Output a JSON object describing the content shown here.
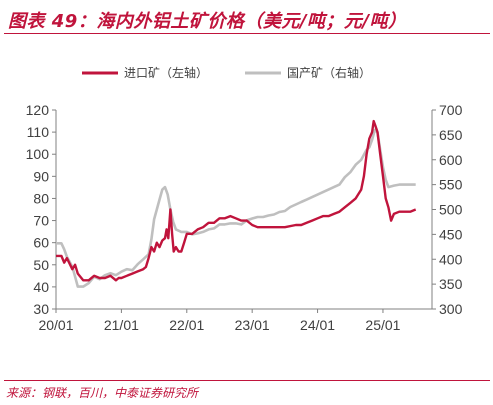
{
  "header": {
    "title": "图表 49：海内外铝土矿价格（美元/吨；元/吨）"
  },
  "footer": {
    "source": "来源：钢联，百川，中泰证券研究所"
  },
  "colors": {
    "accent": "#c0143c",
    "series_left": "#c0143c",
    "series_right": "#bfbfbf",
    "axis": "#808080"
  },
  "chart_data": {
    "type": "line",
    "title": "",
    "legend_placement": "top-center",
    "grid": false,
    "x_axis": {
      "ticks": [
        "20/01",
        "21/01",
        "22/01",
        "23/01",
        "24/01",
        "25/01"
      ],
      "range": [
        0,
        69
      ]
    },
    "y_left": {
      "range": [
        30,
        120
      ],
      "ticks": [
        30,
        40,
        50,
        60,
        70,
        80,
        90,
        100,
        110,
        120
      ]
    },
    "y_right": {
      "range": [
        300,
        700
      ],
      "ticks": [
        300,
        350,
        400,
        450,
        500,
        550,
        600,
        650,
        700
      ]
    },
    "series": [
      {
        "name": "进口矿（左轴）",
        "axis": "left",
        "color": "#c0143c",
        "points": [
          [
            0,
            54
          ],
          [
            1,
            54
          ],
          [
            1.5,
            51
          ],
          [
            2,
            53
          ],
          [
            3,
            48
          ],
          [
            3.5,
            50
          ],
          [
            4,
            46
          ],
          [
            5,
            43
          ],
          [
            6,
            43
          ],
          [
            7,
            45
          ],
          [
            8,
            44
          ],
          [
            9,
            44
          ],
          [
            10,
            45
          ],
          [
            11,
            43
          ],
          [
            11.5,
            44
          ],
          [
            12,
            44
          ],
          [
            13,
            45
          ],
          [
            14,
            46
          ],
          [
            15,
            47
          ],
          [
            16,
            48
          ],
          [
            16.5,
            49
          ],
          [
            17,
            53
          ],
          [
            17.5,
            58
          ],
          [
            18,
            56
          ],
          [
            18.5,
            60
          ],
          [
            19,
            58
          ],
          [
            19.5,
            61
          ],
          [
            20,
            62
          ],
          [
            20.3,
            66
          ],
          [
            20.6,
            62
          ],
          [
            21,
            75
          ],
          [
            21.3,
            64
          ],
          [
            21.6,
            56
          ],
          [
            22,
            58
          ],
          [
            22.5,
            56
          ],
          [
            23,
            56
          ],
          [
            23.5,
            60
          ],
          [
            24,
            64
          ],
          [
            25,
            64
          ],
          [
            26,
            66
          ],
          [
            27,
            67
          ],
          [
            28,
            69
          ],
          [
            29,
            69
          ],
          [
            30,
            71
          ],
          [
            31,
            71
          ],
          [
            32,
            72
          ],
          [
            33,
            71
          ],
          [
            34,
            70
          ],
          [
            35,
            70
          ],
          [
            36,
            68
          ],
          [
            37,
            67
          ],
          [
            38,
            67
          ],
          [
            40,
            67
          ],
          [
            42,
            67
          ],
          [
            44,
            68
          ],
          [
            45,
            68
          ],
          [
            46,
            69
          ],
          [
            47,
            70
          ],
          [
            48,
            71
          ],
          [
            49,
            72
          ],
          [
            50,
            72
          ],
          [
            51,
            73
          ],
          [
            52,
            74
          ],
          [
            53,
            76
          ],
          [
            54,
            78
          ],
          [
            55,
            80
          ],
          [
            56,
            84
          ],
          [
            56.5,
            90
          ],
          [
            57,
            100
          ],
          [
            57.5,
            107
          ],
          [
            58,
            110
          ],
          [
            58.3,
            115
          ],
          [
            58.6,
            113
          ],
          [
            59,
            110
          ],
          [
            59.5,
            100
          ],
          [
            60,
            90
          ],
          [
            60.5,
            80
          ],
          [
            61,
            76
          ],
          [
            61.5,
            70
          ],
          [
            62,
            73
          ],
          [
            63,
            74
          ],
          [
            64,
            74
          ],
          [
            65,
            74
          ],
          [
            66,
            75
          ]
        ]
      },
      {
        "name": "国产矿（右轴）",
        "axis": "right",
        "color": "#bfbfbf",
        "points": [
          [
            0,
            432
          ],
          [
            1,
            432
          ],
          [
            1.5,
            420
          ],
          [
            2,
            405
          ],
          [
            3,
            385
          ],
          [
            3.5,
            365
          ],
          [
            4,
            345
          ],
          [
            5,
            345
          ],
          [
            6,
            352
          ],
          [
            7,
            365
          ],
          [
            8,
            360
          ],
          [
            9,
            368
          ],
          [
            10,
            372
          ],
          [
            11,
            368
          ],
          [
            12,
            375
          ],
          [
            13,
            380
          ],
          [
            14,
            378
          ],
          [
            15,
            390
          ],
          [
            16,
            400
          ],
          [
            17,
            410
          ],
          [
            17.5,
            440
          ],
          [
            18,
            480
          ],
          [
            18.5,
            500
          ],
          [
            19,
            520
          ],
          [
            19.5,
            540
          ],
          [
            20,
            545
          ],
          [
            20.5,
            530
          ],
          [
            21,
            500
          ],
          [
            21.5,
            475
          ],
          [
            22,
            460
          ],
          [
            23,
            455
          ],
          [
            24,
            455
          ],
          [
            25,
            450
          ],
          [
            26,
            452
          ],
          [
            27,
            455
          ],
          [
            28,
            460
          ],
          [
            29,
            462
          ],
          [
            30,
            470
          ],
          [
            31,
            470
          ],
          [
            32,
            472
          ],
          [
            33,
            472
          ],
          [
            34,
            470
          ],
          [
            35,
            478
          ],
          [
            36,
            482
          ],
          [
            37,
            485
          ],
          [
            38,
            485
          ],
          [
            39,
            488
          ],
          [
            40,
            490
          ],
          [
            41,
            495
          ],
          [
            42,
            497
          ],
          [
            43,
            505
          ],
          [
            44,
            510
          ],
          [
            45,
            515
          ],
          [
            46,
            520
          ],
          [
            47,
            525
          ],
          [
            48,
            530
          ],
          [
            49,
            535
          ],
          [
            50,
            540
          ],
          [
            51,
            545
          ],
          [
            52,
            550
          ],
          [
            53,
            565
          ],
          [
            54,
            575
          ],
          [
            55,
            590
          ],
          [
            56,
            600
          ],
          [
            57,
            620
          ],
          [
            57.5,
            625
          ],
          [
            58,
            640
          ],
          [
            58.5,
            660
          ],
          [
            59,
            655
          ],
          [
            59.5,
            620
          ],
          [
            60,
            585
          ],
          [
            60.5,
            560
          ],
          [
            61,
            545
          ],
          [
            62,
            548
          ],
          [
            63,
            550
          ],
          [
            64,
            550
          ],
          [
            65,
            550
          ],
          [
            66,
            550
          ]
        ]
      }
    ]
  }
}
